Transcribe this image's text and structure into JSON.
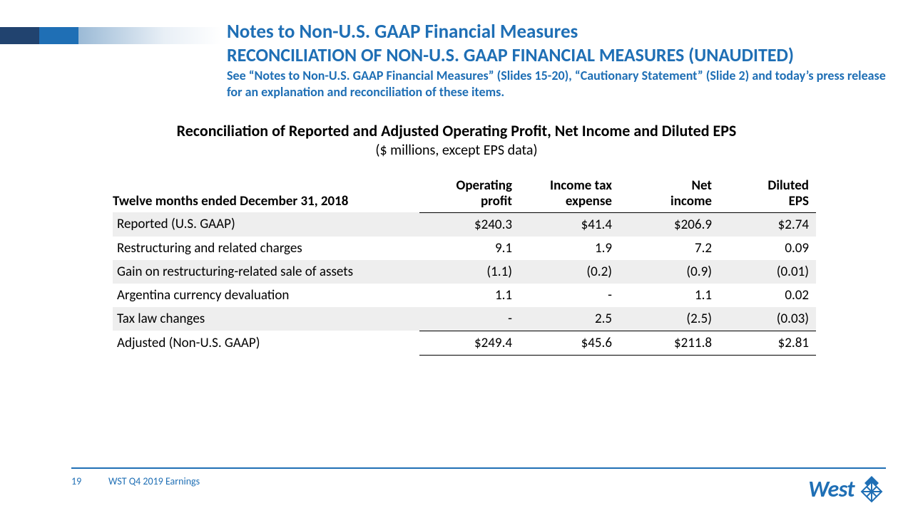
{
  "colors": {
    "brand_blue": "#1f6fb5",
    "dark_blue": "#21436f",
    "shade": "#eeeeee",
    "text": "#000000"
  },
  "header": {
    "title1": "Notes to Non-U.S. GAAP Financial Measures",
    "title2": "RECONCILIATION OF NON-U.S. GAAP FINANCIAL MEASURES (UNAUDITED)",
    "subtitle": "See “Notes to Non-U.S. GAAP Financial Measures” (Slides 15-20), “Cautionary Statement” (Slide 2) and today’s press release for an explanation and reconciliation of these items."
  },
  "table_heading": {
    "line1": "Reconciliation of Reported and Adjusted Operating Profit, Net Income and Diluted EPS",
    "line2": "($ millions, except EPS data)"
  },
  "table": {
    "period_label": "Twelve months ended December 31, 2018",
    "columns": [
      {
        "top": "Operating",
        "bottom": "profit"
      },
      {
        "top": "Income tax",
        "bottom": "expense"
      },
      {
        "top": "Net",
        "bottom": "income"
      },
      {
        "top": "Diluted",
        "bottom": "EPS"
      }
    ],
    "rows": [
      {
        "label": "Reported (U.S. GAAP)",
        "values": [
          "$240.3",
          "$41.4",
          "$206.9",
          "$2.74"
        ],
        "shaded": true
      },
      {
        "label": "Restructuring and related charges",
        "values": [
          "9.1",
          "1.9",
          "7.2",
          "0.09"
        ],
        "shaded": false
      },
      {
        "label": "Gain on restructuring-related sale of assets",
        "values": [
          "(1.1)",
          "(0.2)",
          "(0.9)",
          "(0.01)"
        ],
        "shaded": true
      },
      {
        "label": "Argentina currency devaluation",
        "values": [
          "1.1",
          "-",
          "1.1",
          "0.02"
        ],
        "shaded": false
      },
      {
        "label": "Tax law changes",
        "values": [
          "-",
          "2.5",
          "(2.5)",
          "(0.03)"
        ],
        "shaded": true
      }
    ],
    "total": {
      "label": "Adjusted (Non-U.S. GAAP)",
      "values": [
        "$249.4",
        "$45.6",
        "$211.8",
        "$2.81"
      ]
    }
  },
  "footer": {
    "page": "19",
    "text": "WST Q4 2019 Earnings",
    "logo_text": "West"
  }
}
